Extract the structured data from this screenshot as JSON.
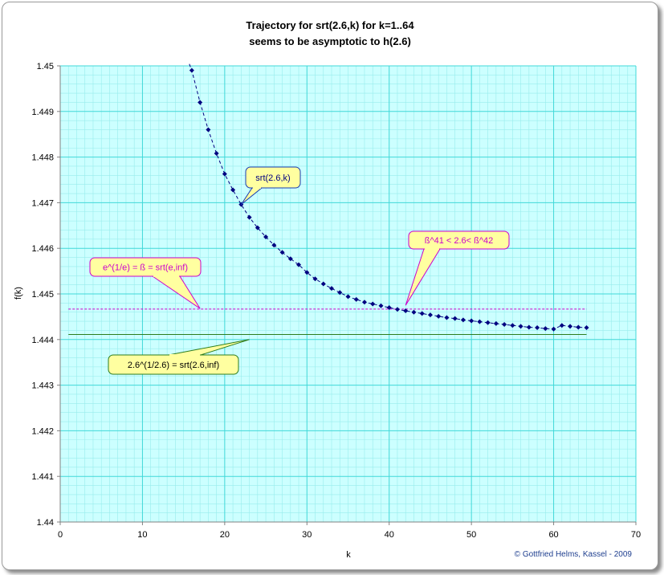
{
  "chart_data": {
    "type": "line",
    "title": [
      "Trajectory for srt(2.6,k) for k=1..64",
      "seems to be asymptotic to h(2.6)"
    ],
    "xlabel": "k",
    "ylabel": "f(k)",
    "xlim": [
      0,
      70
    ],
    "ylim": [
      1.44,
      1.45
    ],
    "x_ticks": [
      0,
      10,
      20,
      30,
      40,
      50,
      60,
      70
    ],
    "y_ticks": [
      1.44,
      1.441,
      1.442,
      1.443,
      1.444,
      1.445,
      1.446,
      1.447,
      1.448,
      1.449,
      1.45
    ],
    "y_tick_labels": [
      "1.44",
      "1.441",
      "1.442",
      "1.443",
      "1.444",
      "1.445",
      "1.446",
      "1.447",
      "1.448",
      "1.449",
      "1.45"
    ],
    "grid": true,
    "series": [
      {
        "color": "#000080",
        "marker": "diamond",
        "x": [
          16,
          17,
          18,
          19,
          20,
          21,
          22,
          23,
          24,
          25,
          26,
          27,
          28,
          29,
          30,
          31,
          32,
          33,
          34,
          35,
          36,
          37,
          38,
          39,
          40,
          41,
          42,
          43,
          44,
          45,
          46,
          47,
          48,
          49,
          50,
          51,
          52,
          53,
          54,
          55,
          56,
          57,
          58,
          59,
          60,
          61,
          62,
          63,
          64
        ],
        "y": [
          1.4499,
          1.4492,
          1.4486,
          1.44808,
          1.44763,
          1.44728,
          1.44696,
          1.44668,
          1.44645,
          1.44625,
          1.44607,
          1.44591,
          1.44577,
          1.44564,
          1.44547,
          1.44533,
          1.44522,
          1.44512,
          1.44503,
          1.44494,
          1.44488,
          1.44482,
          1.44478,
          1.44474,
          1.4447,
          1.44466,
          1.44463,
          1.4446,
          1.44457,
          1.44454,
          1.44451,
          1.44448,
          1.44446,
          1.44443,
          1.44441,
          1.44439,
          1.44437,
          1.44435,
          1.44433,
          1.44431,
          1.44429,
          1.44427,
          1.44426,
          1.44424,
          1.44423,
          1.44431,
          1.44429,
          1.44427,
          1.44426
        ]
      }
    ],
    "reference_lines": [
      {
        "y": 1.444667,
        "x_range": [
          1,
          64
        ],
        "color": "#cc00cc",
        "style": "dashed"
      },
      {
        "y": 1.444112,
        "x_range": [
          1,
          64
        ],
        "color": "#2e7d1e",
        "style": "solid"
      }
    ],
    "annotations": [
      {
        "text": "srt(2.6,k)",
        "anchor_x": 22,
        "anchor_y": 1.44696,
        "border": "#1a3bb0",
        "text_color": "#000080"
      },
      {
        "text": "ß^41 < 2.6< ß^42",
        "anchor_x": 42,
        "anchor_y": 1.44475,
        "border": "#cc00cc",
        "text_color": "#cc00cc"
      },
      {
        "text": "e^(1/e) = ß = srt(e,inf)",
        "anchor_x": 17,
        "anchor_y": 1.44468,
        "border": "#cc00cc",
        "text_color": "#cc00cc"
      },
      {
        "text": "2.6^(1/2.6) = srt(2.6,inf)",
        "anchor_x": 23,
        "anchor_y": 1.444,
        "border": "#2e7d1e",
        "text_color": "#000000"
      }
    ],
    "credit": "© Gottfried Helms, Kassel - 2009",
    "colors": {
      "plot_bg": "#ccffff",
      "minor_grid": "#98ecec",
      "major_grid": "#40d8d8",
      "callout_fill": "#ffffa0"
    }
  }
}
